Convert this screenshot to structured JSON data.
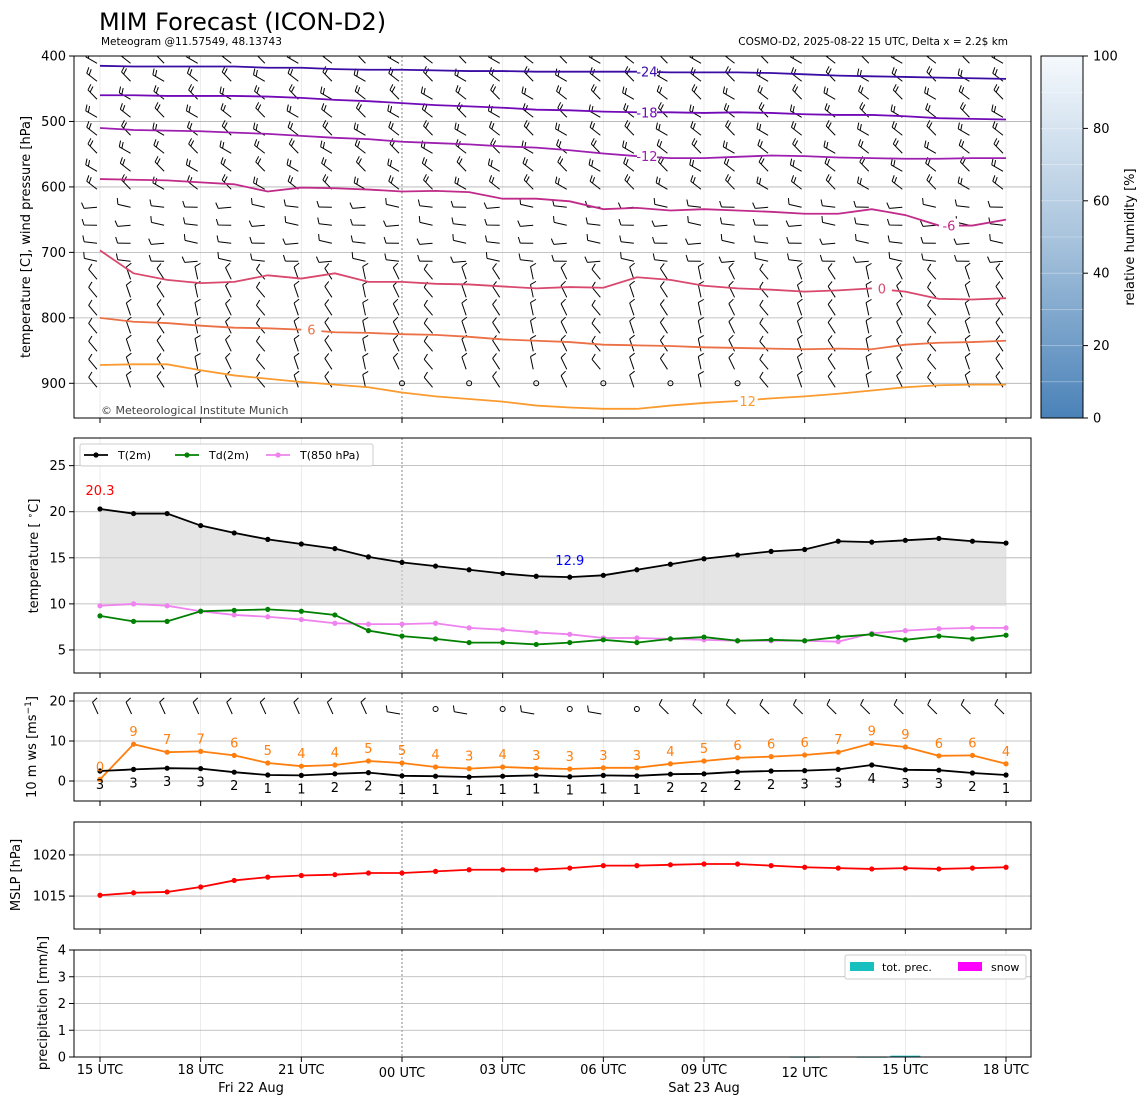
{
  "figure": {
    "title": "MIM Forecast (ICON-D2)",
    "subtitle_left": "Meteogram @11.57549, 48.13743",
    "subtitle_right": "COSMO-D2, 2025-08-22 15 UTC, Delta x = 2.2$ km",
    "copyright": "© Meteorological Institute Munich",
    "date_labels": [
      "Fri 22 Aug",
      "Sat 23 Aug"
    ]
  },
  "chart_data": [
    {
      "id": "upper_air",
      "type": "line",
      "ylabel": "temperature [C], wind pressure [hPa]",
      "yticks": [
        400,
        500,
        600,
        700,
        800,
        900
      ],
      "ylim": [
        953,
        400
      ],
      "y_inverted": true,
      "x_hours": [
        0,
        1,
        2,
        3,
        4,
        5,
        6,
        7,
        8,
        9,
        10,
        11,
        12,
        13,
        14,
        15,
        16,
        17,
        18,
        19,
        20,
        21,
        22,
        23,
        24,
        25,
        26,
        27
      ],
      "xtick_labels": [
        "15 UTC",
        "18 UTC",
        "21 UTC",
        "00 UTC",
        "03 UTC",
        "06 UTC",
        "09 UTC",
        "12 UTC",
        "15 UTC",
        "18 UTC"
      ],
      "isotherms": [
        {
          "label": "-24",
          "color": "#3a0ca3",
          "p": [
            415,
            416,
            416,
            416,
            416,
            418,
            418,
            420,
            421,
            421,
            422,
            423,
            423,
            424,
            424,
            424,
            424,
            425,
            425,
            425,
            426,
            428,
            430,
            431,
            432,
            433,
            434,
            435
          ]
        },
        {
          "label": "-18",
          "color": "#7209b7",
          "p": [
            460,
            460,
            461,
            461,
            461,
            462,
            464,
            467,
            469,
            472,
            475,
            477,
            479,
            482,
            483,
            485,
            486,
            486,
            487,
            486,
            487,
            489,
            490,
            490,
            492,
            495,
            496,
            497
          ]
        },
        {
          "label": "-12",
          "color": "#9d1fb0",
          "p": [
            510,
            513,
            514,
            515,
            517,
            519,
            522,
            525,
            527,
            531,
            533,
            535,
            538,
            540,
            544,
            549,
            553,
            556,
            556,
            554,
            552,
            553,
            555,
            556,
            557,
            557,
            556,
            556
          ]
        },
        {
          "label": "-6",
          "color": "#c02a89",
          "p": [
            588,
            589,
            590,
            593,
            596,
            607,
            601,
            602,
            604,
            607,
            606,
            608,
            618,
            618,
            622,
            634,
            632,
            636,
            634,
            636,
            638,
            641,
            641,
            634,
            643,
            659,
            659,
            650
          ]
        },
        {
          "label": "0",
          "color": "#d9486d",
          "p": [
            697,
            732,
            742,
            747,
            745,
            735,
            740,
            732,
            745,
            745,
            748,
            749,
            752,
            755,
            753,
            754,
            738,
            742,
            751,
            755,
            757,
            760,
            758,
            755,
            760,
            771,
            772,
            770
          ]
        },
        {
          "label": "6",
          "color": "#ec7046",
          "p": [
            800,
            806,
            808,
            812,
            815,
            816,
            818,
            822,
            823,
            825,
            826,
            829,
            833,
            835,
            837,
            841,
            842,
            843,
            845,
            846,
            847,
            848,
            847,
            848,
            841,
            838,
            837,
            835
          ]
        },
        {
          "label": "12",
          "color": "#fb9b2f",
          "p": [
            872,
            871,
            871,
            880,
            888,
            893,
            898,
            902,
            906,
            914,
            920,
            924,
            928,
            934,
            937,
            939,
            939,
            934,
            930,
            927,
            923,
            920,
            916,
            911,
            906,
            903,
            902,
            902
          ]
        }
      ],
      "colorbar": {
        "label": "relative humidity [%]",
        "ticks": [
          0,
          20,
          40,
          60,
          80,
          100
        ]
      }
    },
    {
      "id": "temperature",
      "type": "line",
      "ylabel": "temperature [$^\\circ$C]",
      "ylim": [
        2.5,
        28
      ],
      "yticks": [
        5,
        10,
        15,
        20,
        25
      ],
      "x_hours": [
        0,
        1,
        2,
        3,
        4,
        5,
        6,
        7,
        8,
        9,
        10,
        11,
        12,
        13,
        14,
        15,
        16,
        17,
        18,
        19,
        20,
        21,
        22,
        23,
        24,
        25,
        26,
        27
      ],
      "series": [
        {
          "name": "T(2m)",
          "color": "#000000",
          "values": [
            20.3,
            19.8,
            19.8,
            18.5,
            17.7,
            17.0,
            16.5,
            16.0,
            15.1,
            14.5,
            14.1,
            13.7,
            13.3,
            13.0,
            12.9,
            13.1,
            13.7,
            14.3,
            14.9,
            15.3,
            15.7,
            15.9,
            16.8,
            16.7,
            16.9,
            17.1,
            16.8,
            16.6
          ]
        },
        {
          "name": "Td(2m)",
          "color": "#008000",
          "values": [
            8.7,
            8.1,
            8.1,
            9.2,
            9.3,
            9.4,
            9.2,
            8.8,
            7.1,
            6.5,
            6.2,
            5.8,
            5.8,
            5.6,
            5.8,
            6.1,
            5.8,
            6.2,
            6.4,
            6.0,
            6.1,
            6.0,
            6.4,
            6.7,
            6.1,
            6.5,
            6.2,
            6.6
          ]
        },
        {
          "name": "T(850 hPa)",
          "color": "#ee82ee",
          "values": [
            9.8,
            10.0,
            9.8,
            9.2,
            8.8,
            8.6,
            8.3,
            7.9,
            7.8,
            7.8,
            7.9,
            7.4,
            7.2,
            6.9,
            6.7,
            6.3,
            6.3,
            6.2,
            6.1,
            6.0,
            6.0,
            6.0,
            5.9,
            6.8,
            7.1,
            7.3,
            7.4,
            7.4
          ]
        }
      ],
      "annotations": [
        {
          "text": "20.3",
          "color": "#ff0000",
          "x": 0,
          "y": 20.3
        },
        {
          "text": "12.9",
          "color": "#0000ff",
          "x": 14,
          "y": 12.9
        }
      ]
    },
    {
      "id": "wind",
      "type": "line",
      "ylabel": "10 m ws [ms$^{-1}$]",
      "ylim": [
        -5,
        22
      ],
      "yticks": [
        0,
        10,
        20
      ],
      "x_hours": [
        0,
        1,
        2,
        3,
        4,
        5,
        6,
        7,
        8,
        9,
        10,
        11,
        12,
        13,
        14,
        15,
        16,
        17,
        18,
        19,
        20,
        21,
        22,
        23,
        24,
        25,
        26,
        27
      ],
      "series": [
        {
          "name": "wind speed",
          "color": "#000000",
          "values": [
            2.5,
            2.9,
            3.2,
            3.1,
            2.2,
            1.5,
            1.4,
            1.8,
            2.1,
            1.3,
            1.2,
            1.0,
            1.2,
            1.4,
            1.1,
            1.4,
            1.3,
            1.7,
            1.8,
            2.3,
            2.5,
            2.6,
            2.9,
            4.0,
            2.8,
            2.7,
            2.0,
            1.5
          ]
        },
        {
          "name": "gusts",
          "color": "#ff7f0e",
          "values": [
            0.4,
            9.2,
            7.2,
            7.4,
            6.4,
            4.5,
            3.7,
            4.0,
            5.0,
            4.5,
            3.5,
            3.1,
            3.5,
            3.2,
            3.0,
            3.3,
            3.3,
            4.3,
            5.0,
            5.8,
            6.1,
            6.5,
            7.2,
            9.4,
            8.5,
            6.3,
            6.4,
            4.3
          ]
        }
      ],
      "speed_labels": [
        "3",
        "3",
        "3",
        "3",
        "2",
        "1",
        "1",
        "2",
        "2",
        "1",
        "1",
        "1",
        "1",
        "1",
        "1",
        "1",
        "1",
        "2",
        "2",
        "2",
        "2",
        "3",
        "3",
        "4",
        "3",
        "3",
        "2",
        "1"
      ],
      "gust_labels": [
        "0",
        "9",
        "7",
        "7",
        "6",
        "5",
        "4",
        "4",
        "5",
        "5",
        "4",
        "3",
        "4",
        "3",
        "3",
        "3",
        "3",
        "4",
        "5",
        "6",
        "6",
        "6",
        "7",
        "9",
        "9",
        "6",
        "6",
        "4"
      ]
    },
    {
      "id": "mslp",
      "type": "line",
      "ylabel": "MSLP [hPa]",
      "ylim": [
        1011,
        1024
      ],
      "yticks": [
        1015,
        1020
      ],
      "x_hours": [
        0,
        1,
        2,
        3,
        4,
        5,
        6,
        7,
        8,
        9,
        10,
        11,
        12,
        13,
        14,
        15,
        16,
        17,
        18,
        19,
        20,
        21,
        22,
        23,
        24,
        25,
        26,
        27
      ],
      "series": [
        {
          "name": "MSLP",
          "color": "#ff0000",
          "values": [
            1015.1,
            1015.4,
            1015.5,
            1016.1,
            1016.9,
            1017.3,
            1017.5,
            1017.6,
            1017.8,
            1017.8,
            1018.0,
            1018.2,
            1018.2,
            1018.2,
            1018.4,
            1018.7,
            1018.7,
            1018.8,
            1018.9,
            1018.9,
            1018.7,
            1018.5,
            1018.4,
            1018.3,
            1018.4,
            1018.3,
            1018.4,
            1018.5
          ]
        }
      ]
    },
    {
      "id": "precipitation",
      "type": "bar",
      "ylabel": "precipitation [mm/h]",
      "ylim": [
        0,
        4
      ],
      "yticks": [
        0,
        1,
        2,
        3,
        4
      ],
      "legend": [
        "tot. prec.",
        "snow"
      ],
      "colors": {
        "tot_prec": "#17bfbf",
        "snow": "#ff00ff"
      },
      "x_hours": [
        21,
        23,
        24
      ],
      "tot_prec": [
        0.02,
        0.02,
        0.05
      ],
      "snow": [
        0,
        0,
        0
      ]
    }
  ]
}
